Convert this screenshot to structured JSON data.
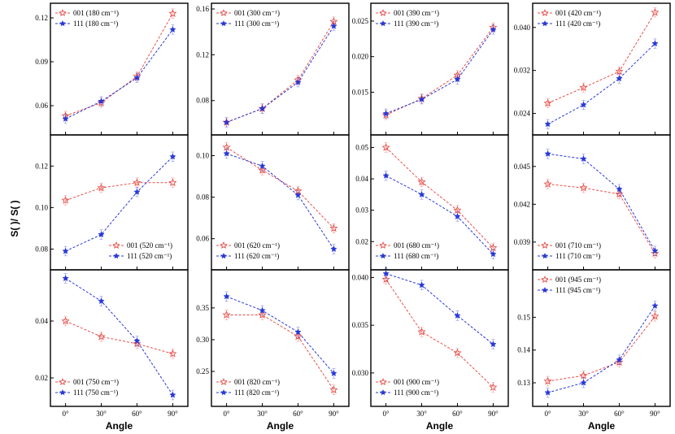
{
  "figure": {
    "y_axis_label": "S( )/ S( )",
    "colors": {
      "s001": "#e8504a",
      "s111": "#2838d8"
    }
  },
  "chart_data": [
    {
      "type": "line",
      "x": [
        "0°",
        "30°",
        "60°",
        "90°"
      ],
      "ylim": [
        0.04,
        0.13
      ],
      "yticks": [
        "0.06",
        "0.09",
        "0.12"
      ],
      "show_xlabel": false,
      "series": [
        {
          "name": "001 (180 cm⁻¹)",
          "values": [
            0.053,
            0.062,
            0.08,
            0.123
          ]
        },
        {
          "name": "111 (180 cm⁻¹)",
          "values": [
            0.051,
            0.063,
            0.079,
            0.112
          ]
        }
      ],
      "legend": "top-left"
    },
    {
      "type": "line",
      "x": [
        "0°",
        "30°",
        "60°",
        "90°"
      ],
      "ylim": [
        0.05,
        0.165
      ],
      "yticks": [
        "0.08",
        "0.12",
        "0.16"
      ],
      "show_xlabel": false,
      "series": [
        {
          "name": "001 (300 cm⁻¹)",
          "values": [
            0.061,
            0.073,
            0.098,
            0.149
          ]
        },
        {
          "name": "111 (300 cm⁻¹)",
          "values": [
            0.061,
            0.073,
            0.096,
            0.145
          ]
        }
      ],
      "legend": "top-left"
    },
    {
      "type": "line",
      "x": [
        "0°",
        "30°",
        "60°",
        "90°"
      ],
      "ylim": [
        0.009,
        0.0275
      ],
      "yticks": [
        "0.015",
        "0.020",
        "0.025"
      ],
      "show_xlabel": false,
      "series": [
        {
          "name": "001 (390 cm⁻¹)",
          "values": [
            0.0118,
            0.0141,
            0.0174,
            0.0241
          ]
        },
        {
          "name": "111 (390 cm⁻¹)",
          "values": [
            0.012,
            0.014,
            0.0168,
            0.0238
          ]
        }
      ],
      "legend": "top-left"
    },
    {
      "type": "line",
      "x": [
        "0°",
        "30°",
        "60°",
        "90°"
      ],
      "ylim": [
        0.02,
        0.0445
      ],
      "yticks": [
        "0.024",
        "0.032",
        "0.040"
      ],
      "show_xlabel": false,
      "series": [
        {
          "name": "001 (420 cm⁻¹)",
          "values": [
            0.0259,
            0.0288,
            0.0318,
            0.0428
          ]
        },
        {
          "name": "111 (420 cm⁻¹)",
          "values": [
            0.022,
            0.0256,
            0.0305,
            0.037
          ]
        }
      ],
      "legend": "top-left"
    },
    {
      "type": "line",
      "x": [
        "0°",
        "30°",
        "60°",
        "90°"
      ],
      "ylim": [
        0.07,
        0.135
      ],
      "yticks": [
        "0.08",
        "0.10",
        "0.12"
      ],
      "show_xlabel": false,
      "series": [
        {
          "name": "001 (520 cm⁻¹)",
          "values": [
            0.1035,
            0.1095,
            0.112,
            0.112
          ]
        },
        {
          "name": "111 (520 cm⁻¹)",
          "values": [
            0.079,
            0.087,
            0.1075,
            0.1245
          ]
        }
      ],
      "legend": "bottom-right"
    },
    {
      "type": "line",
      "x": [
        "0°",
        "30°",
        "60°",
        "90°"
      ],
      "ylim": [
        0.045,
        0.11
      ],
      "yticks": [
        "0.06",
        "0.08",
        "0.10"
      ],
      "show_xlabel": false,
      "series": [
        {
          "name": "001 (620 cm⁻¹)",
          "values": [
            0.104,
            0.093,
            0.083,
            0.065
          ]
        },
        {
          "name": "111 (620 cm⁻¹)",
          "values": [
            0.101,
            0.095,
            0.081,
            0.055
          ]
        }
      ],
      "legend": "bottom-left"
    },
    {
      "type": "line",
      "x": [
        "0°",
        "30°",
        "60°",
        "90°"
      ],
      "ylim": [
        0.011,
        0.054
      ],
      "yticks": [
        "0.02",
        "0.03",
        "0.04",
        "0.05"
      ],
      "show_xlabel": false,
      "series": [
        {
          "name": "001 (680 cm⁻¹)",
          "values": [
            0.05,
            0.039,
            0.03,
            0.018
          ]
        },
        {
          "name": "111 (680 cm⁻¹)",
          "values": [
            0.041,
            0.035,
            0.028,
            0.016
          ]
        }
      ],
      "legend": "bottom-left"
    },
    {
      "type": "line",
      "x": [
        "0°",
        "30°",
        "60°",
        "90°"
      ],
      "ylim": [
        0.0368,
        0.0475
      ],
      "yticks": [
        "0.039",
        "0.042",
        "0.045"
      ],
      "show_xlabel": false,
      "series": [
        {
          "name": "001 (710 cm⁻¹)",
          "values": [
            0.0436,
            0.0433,
            0.0428,
            0.0381
          ]
        },
        {
          "name": "111 (710 cm⁻¹)",
          "values": [
            0.046,
            0.0456,
            0.0432,
            0.0383
          ]
        }
      ],
      "legend": "bottom-left"
    },
    {
      "type": "line",
      "x": [
        "0°",
        "30°",
        "60°",
        "90°"
      ],
      "ylim": [
        0.01,
        0.058
      ],
      "yticks": [
        "0.02",
        "0.04"
      ],
      "show_xlabel": true,
      "series": [
        {
          "name": "001 (750 cm⁻¹)",
          "values": [
            0.04,
            0.0345,
            0.032,
            0.0285
          ]
        },
        {
          "name": "111 (750 cm⁻¹)",
          "values": [
            0.055,
            0.047,
            0.033,
            0.014
          ]
        }
      ],
      "legend": "bottom-left"
    },
    {
      "type": "line",
      "x": [
        "0°",
        "30°",
        "60°",
        "90°"
      ],
      "ylim": [
        0.195,
        0.41
      ],
      "yticks": [
        "0.25",
        "0.30",
        "0.35"
      ],
      "show_xlabel": true,
      "series": [
        {
          "name": "001 (820 cm⁻¹)",
          "values": [
            0.339,
            0.339,
            0.305,
            0.221
          ]
        },
        {
          "name": "111 (820 cm⁻¹)",
          "values": [
            0.368,
            0.346,
            0.312,
            0.247
          ]
        }
      ],
      "legend": "bottom-left"
    },
    {
      "type": "line",
      "x": [
        "0°",
        "30°",
        "60°",
        "90°"
      ],
      "ylim": [
        0.0265,
        0.0408
      ],
      "yticks": [
        "0.030",
        "0.035",
        "0.040"
      ],
      "show_xlabel": true,
      "series": [
        {
          "name": "001 (900 cm⁻¹)",
          "values": [
            0.0398,
            0.0343,
            0.0321,
            0.0285
          ]
        },
        {
          "name": "111 (900 cm⁻¹)",
          "values": [
            0.0404,
            0.0392,
            0.036,
            0.033
          ]
        }
      ],
      "legend": "bottom-left"
    },
    {
      "type": "line",
      "x": [
        "0°",
        "30°",
        "60°",
        "90°"
      ],
      "ylim": [
        0.1228,
        0.1645
      ],
      "yticks": [
        "0.13",
        "0.14",
        "0.15"
      ],
      "show_xlabel": true,
      "series": [
        {
          "name": "001 (945 cm⁻¹)",
          "values": [
            0.1305,
            0.1322,
            0.1363,
            0.1503
          ]
        },
        {
          "name": "111 (945 cm⁻¹)",
          "values": [
            0.127,
            0.13,
            0.137,
            0.1535
          ]
        }
      ],
      "legend": "top-left"
    }
  ],
  "x_axis_label": "Angle"
}
